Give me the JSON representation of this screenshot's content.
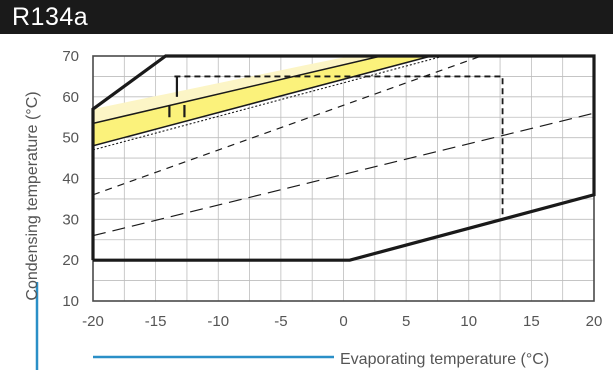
{
  "header": {
    "title": "R134a"
  },
  "colors": {
    "title_bg": "#1a1a1a",
    "title_text": "#ffffff",
    "grid": "#bdbdbd",
    "frame": "#4a4a4a",
    "envelope": "#1a1a1a",
    "band_light": "#fcf5c6",
    "band_yellow": "#fbf27b",
    "axis_accent": "#2a8fc7",
    "axis_text": "#555555"
  },
  "chart_data": {
    "type": "line",
    "title": "R134a",
    "xlabel": "Evaporating temperature (°C)",
    "ylabel": "Condensing temperature (°C)",
    "xlim": [
      -20,
      20
    ],
    "ylim": [
      10,
      70
    ],
    "x_ticks": [
      "-20",
      "-15",
      "-10",
      "-5",
      "0",
      "5",
      "10",
      "15",
      "20"
    ],
    "y_ticks": [
      "10",
      "20",
      "30",
      "40",
      "50",
      "60",
      "70"
    ],
    "grid": true,
    "series": [
      {
        "style": "solid-thick",
        "x": [
          -20,
          -20,
          0.5,
          20,
          20,
          -16.5,
          -20
        ],
        "y": [
          20,
          57,
          70,
          70,
          36,
          20,
          20
        ]
      },
      {
        "style": "solid-thick-bottom",
        "x": [
          -20,
          0.5,
          20
        ],
        "y": [
          20,
          20,
          36
        ]
      },
      {
        "style": "solid-thin",
        "x": [
          -20,
          3
        ],
        "y": [
          53.5,
          70
        ]
      },
      {
        "style": "solid-thin",
        "x": [
          -20,
          7
        ],
        "y": [
          48,
          70
        ]
      },
      {
        "style": "dotted",
        "x": [
          -20,
          8
        ],
        "y": [
          47,
          70
        ]
      },
      {
        "style": "short-dash",
        "x": [
          -20,
          11
        ],
        "y": [
          36,
          70
        ]
      },
      {
        "style": "long-dash",
        "x": [
          -20,
          20
        ],
        "y": [
          26,
          56
        ]
      },
      {
        "style": "dash-box",
        "x": [
          -13.5,
          12.7,
          12.7
        ],
        "y": [
          65,
          65,
          30
        ]
      },
      {
        "style": "solid-marker",
        "x": [
          -13.3,
          -13.3
        ],
        "y": [
          60,
          65
        ]
      },
      {
        "style": "solid-marker",
        "x": [
          -13.9,
          -13.9
        ],
        "y": [
          55,
          58
        ]
      },
      {
        "style": "solid-marker",
        "x": [
          -12.7,
          -12.7
        ],
        "y": [
          55,
          58
        ]
      }
    ]
  }
}
